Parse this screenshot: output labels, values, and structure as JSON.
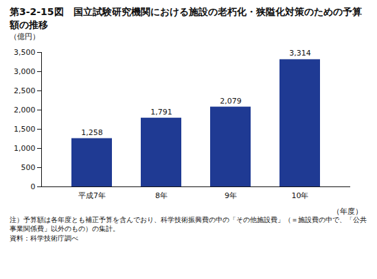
{
  "chart_data": {
    "type": "bar",
    "title": "第3-2-15図　国立試験研究機関における施設の老朽化・狭隘化対策のための予算額の推移",
    "y_label": "（億円）",
    "x_label": "（年度）",
    "categories": [
      "平成7年",
      "8年",
      "9年",
      "10年"
    ],
    "values": [
      1258,
      1791,
      2079,
      3314
    ],
    "value_labels": [
      "1,258",
      "1,791",
      "2,079",
      "3,314"
    ],
    "data_labels": true,
    "color": "#1f3a93",
    "ylim": [
      0,
      3500
    ],
    "yticks": [
      0,
      500,
      {
        "value": 1000,
        "label": "1,000"
      },
      {
        "value": 1500,
        "label": "1,500"
      },
      {
        "value": 2000,
        "label": "2,000"
      },
      {
        "value": 2500,
        "label": "2,500"
      },
      {
        "value": 3000,
        "label": "3,000"
      },
      {
        "value": 3500,
        "label": "3,500"
      }
    ],
    "grid": false,
    "annotations": [
      "注）予算額は各年度とも補正予算を含んでおり、科学技術振興費の中の「その他施設費」（＝施設費の中で、「公共事業関係費」以外のもの）の集計。",
      "資料：科学技術庁調べ"
    ]
  }
}
